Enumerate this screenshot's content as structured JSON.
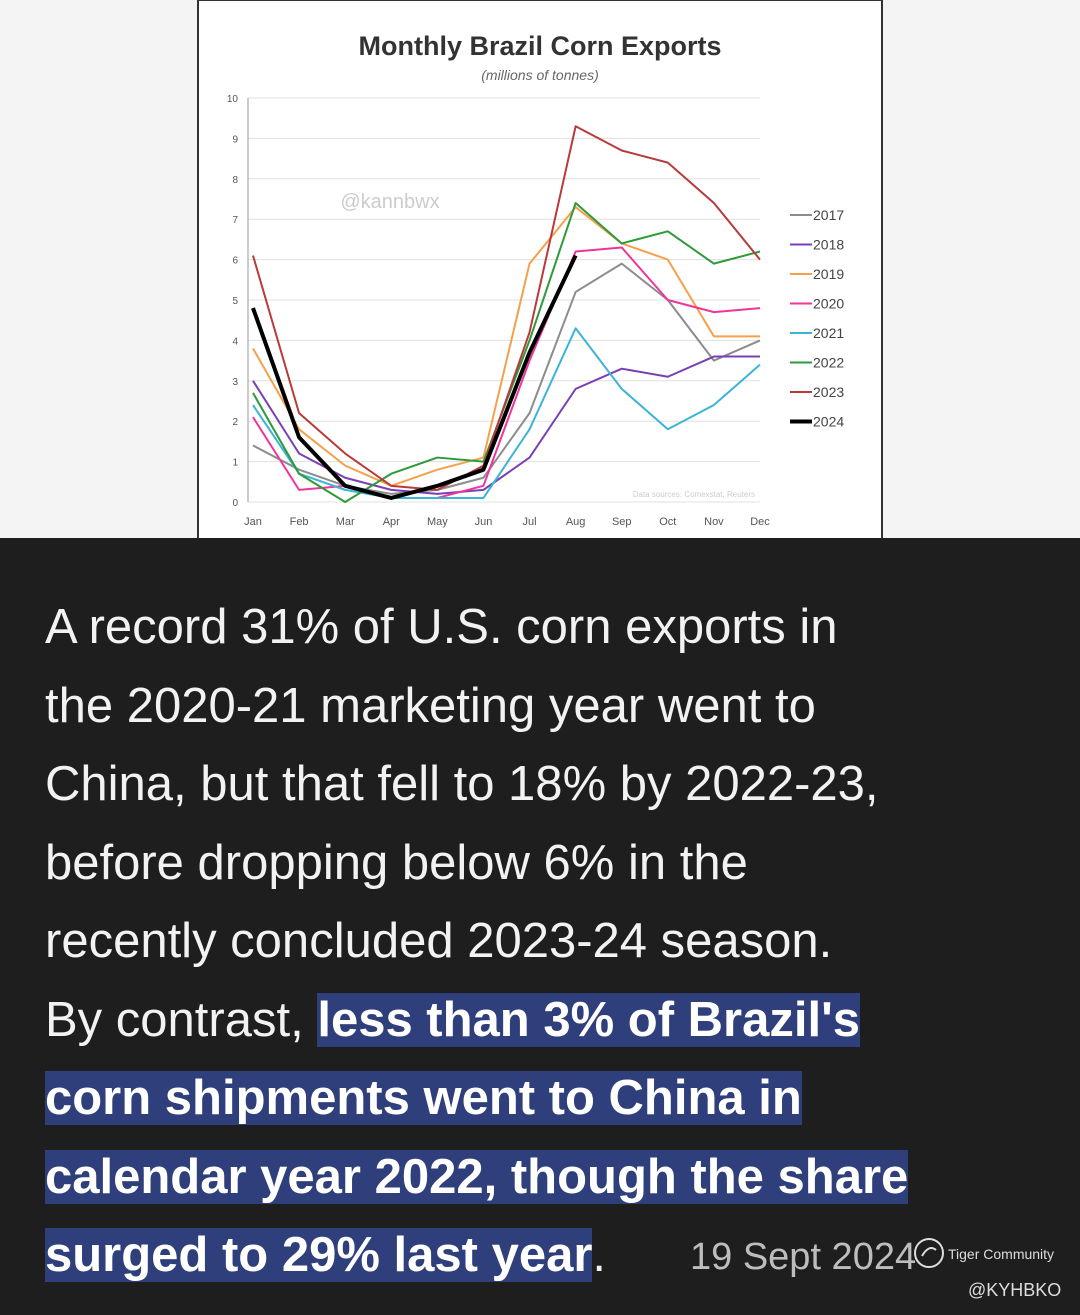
{
  "chart_data": {
    "type": "line",
    "title": "Monthly Brazil Corn Exports",
    "subtitle": "(millions of tonnes)",
    "watermark": "@kannbwx",
    "source": "Data sources: Comexstat, Reuters",
    "categories": [
      "Jan",
      "Feb",
      "Mar",
      "Apr",
      "May",
      "Jun",
      "Jul",
      "Aug",
      "Sep",
      "Oct",
      "Nov",
      "Dec"
    ],
    "ylim": [
      0,
      10
    ],
    "yticks": [
      0,
      1,
      2,
      3,
      4,
      5,
      6,
      7,
      8,
      9,
      10
    ],
    "grid": true,
    "legend": "right",
    "series": [
      {
        "name": "2017",
        "color": "#8c8c8c",
        "values": [
          1.4,
          0.8,
          0.4,
          0.2,
          0.3,
          0.6,
          2.2,
          5.2,
          5.9,
          5.0,
          3.5,
          4.0
        ]
      },
      {
        "name": "2018",
        "color": "#7b3fb5",
        "values": [
          3.0,
          1.2,
          0.6,
          0.3,
          0.2,
          0.3,
          1.1,
          2.8,
          3.3,
          3.1,
          3.6,
          3.6
        ]
      },
      {
        "name": "2019",
        "color": "#f5a04a",
        "values": [
          3.8,
          1.8,
          0.9,
          0.4,
          0.8,
          1.1,
          5.9,
          7.3,
          6.4,
          6.0,
          4.1,
          4.1
        ]
      },
      {
        "name": "2020",
        "color": "#f0359a",
        "values": [
          2.1,
          0.3,
          0.4,
          0.1,
          0.1,
          0.4,
          3.5,
          6.2,
          6.3,
          5.0,
          4.7,
          4.8
        ]
      },
      {
        "name": "2021",
        "color": "#3cb4d8",
        "values": [
          2.4,
          0.7,
          0.3,
          0.1,
          0.1,
          0.1,
          1.8,
          4.3,
          2.8,
          1.8,
          2.4,
          3.4
        ]
      },
      {
        "name": "2022",
        "color": "#2e9a3a",
        "values": [
          2.7,
          0.7,
          0.0,
          0.7,
          1.1,
          1.0,
          4.0,
          7.4,
          6.4,
          6.7,
          5.9,
          6.2
        ]
      },
      {
        "name": "2023",
        "color": "#b83a3a",
        "values": [
          6.1,
          2.2,
          1.2,
          0.4,
          0.3,
          0.9,
          4.2,
          9.3,
          8.7,
          8.4,
          7.4,
          6.0
        ]
      },
      {
        "name": "2024",
        "color": "#000000",
        "values": [
          4.8,
          1.6,
          0.4,
          0.1,
          0.4,
          0.8,
          3.7,
          6.1,
          null,
          null,
          null,
          null
        ]
      }
    ]
  },
  "post": {
    "lines": [
      [
        {
          "text": "A record 31% of U.S. corn exports in",
          "highlight": false
        }
      ],
      [
        {
          "text": "the 2020-21 marketing year went to",
          "highlight": false
        }
      ],
      [
        {
          "text": "China, but that fell to 18% by 2022-23,",
          "highlight": false
        }
      ],
      [
        {
          "text": "before dropping below 6% in the",
          "highlight": false
        }
      ],
      [
        {
          "text": "recently concluded 2023-24 season.",
          "highlight": false
        }
      ],
      [
        {
          "text": "By contrast, ",
          "highlight": false
        },
        {
          "text": "less than 3% of Brazil's",
          "highlight": true
        }
      ],
      [
        {
          "text": "corn shipments went to China in",
          "highlight": true
        }
      ],
      [
        {
          "text": "calendar year 2022, though the share",
          "highlight": true
        }
      ],
      [
        {
          "text": "surged to 29% last year",
          "highlight": true
        },
        {
          "text": ".",
          "highlight": false
        }
      ]
    ],
    "date": "19 Sept 2024",
    "brand": "Tiger Community",
    "handle": "@KYHBKO"
  }
}
